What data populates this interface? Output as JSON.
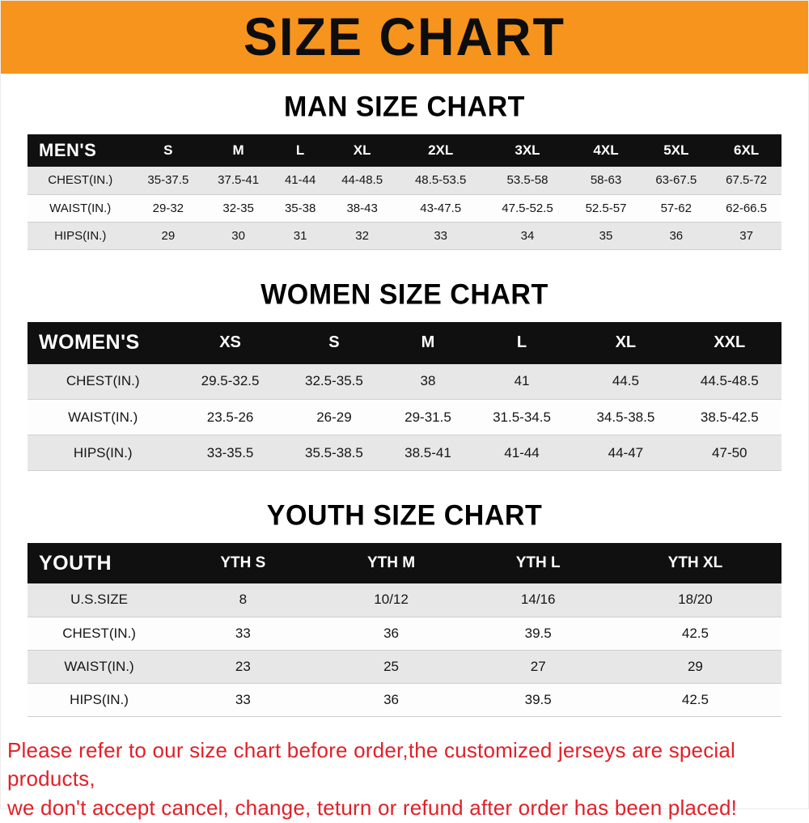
{
  "banner": {
    "title": "SIZE CHART"
  },
  "colors": {
    "banner_orange": "#F7941D",
    "table_header_black": "#101010",
    "row_stripe_gray": "#E7E7E7",
    "notice_red": "#E02128"
  },
  "chart_data": [
    {
      "type": "table",
      "title": "MAN SIZE CHART",
      "corner_label": "MEN'S",
      "columns": [
        "S",
        "M",
        "L",
        "XL",
        "2XL",
        "3XL",
        "4XL",
        "5XL",
        "6XL"
      ],
      "rows": [
        {
          "label": "CHEST(IN.)",
          "values": [
            "35-37.5",
            "37.5-41",
            "41-44",
            "44-48.5",
            "48.5-53.5",
            "53.5-58",
            "58-63",
            "63-67.5",
            "67.5-72"
          ]
        },
        {
          "label": "WAIST(IN.)",
          "values": [
            "29-32",
            "32-35",
            "35-38",
            "38-43",
            "43-47.5",
            "47.5-52.5",
            "52.5-57",
            "57-62",
            "62-66.5"
          ]
        },
        {
          "label": "HIPS(IN.)",
          "values": [
            "29",
            "30",
            "31",
            "32",
            "33",
            "34",
            "35",
            "36",
            "37"
          ]
        }
      ]
    },
    {
      "type": "table",
      "title": "WOMEN SIZE CHART",
      "corner_label": "WOMEN'S",
      "columns": [
        "XS",
        "S",
        "M",
        "L",
        "XL",
        "XXL"
      ],
      "rows": [
        {
          "label": "CHEST(IN.)",
          "values": [
            "29.5-32.5",
            "32.5-35.5",
            "38",
            "41",
            "44.5",
            "44.5-48.5"
          ]
        },
        {
          "label": "WAIST(IN.)",
          "values": [
            "23.5-26",
            "26-29",
            "29-31.5",
            "31.5-34.5",
            "34.5-38.5",
            "38.5-42.5"
          ]
        },
        {
          "label": "HIPS(IN.)",
          "values": [
            "33-35.5",
            "35.5-38.5",
            "38.5-41",
            "41-44",
            "44-47",
            "47-50"
          ]
        }
      ]
    },
    {
      "type": "table",
      "title": "YOUTH SIZE CHART",
      "corner_label": "YOUTH",
      "columns": [
        "YTH S",
        "YTH M",
        "YTH L",
        "YTH XL"
      ],
      "rows": [
        {
          "label": "U.S.SIZE",
          "values": [
            "8",
            "10/12",
            "14/16",
            "18/20"
          ]
        },
        {
          "label": "CHEST(IN.)",
          "values": [
            "33",
            "36",
            "39.5",
            "42.5"
          ]
        },
        {
          "label": "WAIST(IN.)",
          "values": [
            "23",
            "25",
            "27",
            "29"
          ]
        },
        {
          "label": "HIPS(IN.)",
          "values": [
            "33",
            "36",
            "39.5",
            "42.5"
          ]
        }
      ]
    }
  ],
  "notice": {
    "lines": [
      "Please refer to our size chart before order,the customized jerseys are special products,",
      "we don't accept cancel, change, teturn or refund after order has been placed!"
    ]
  }
}
